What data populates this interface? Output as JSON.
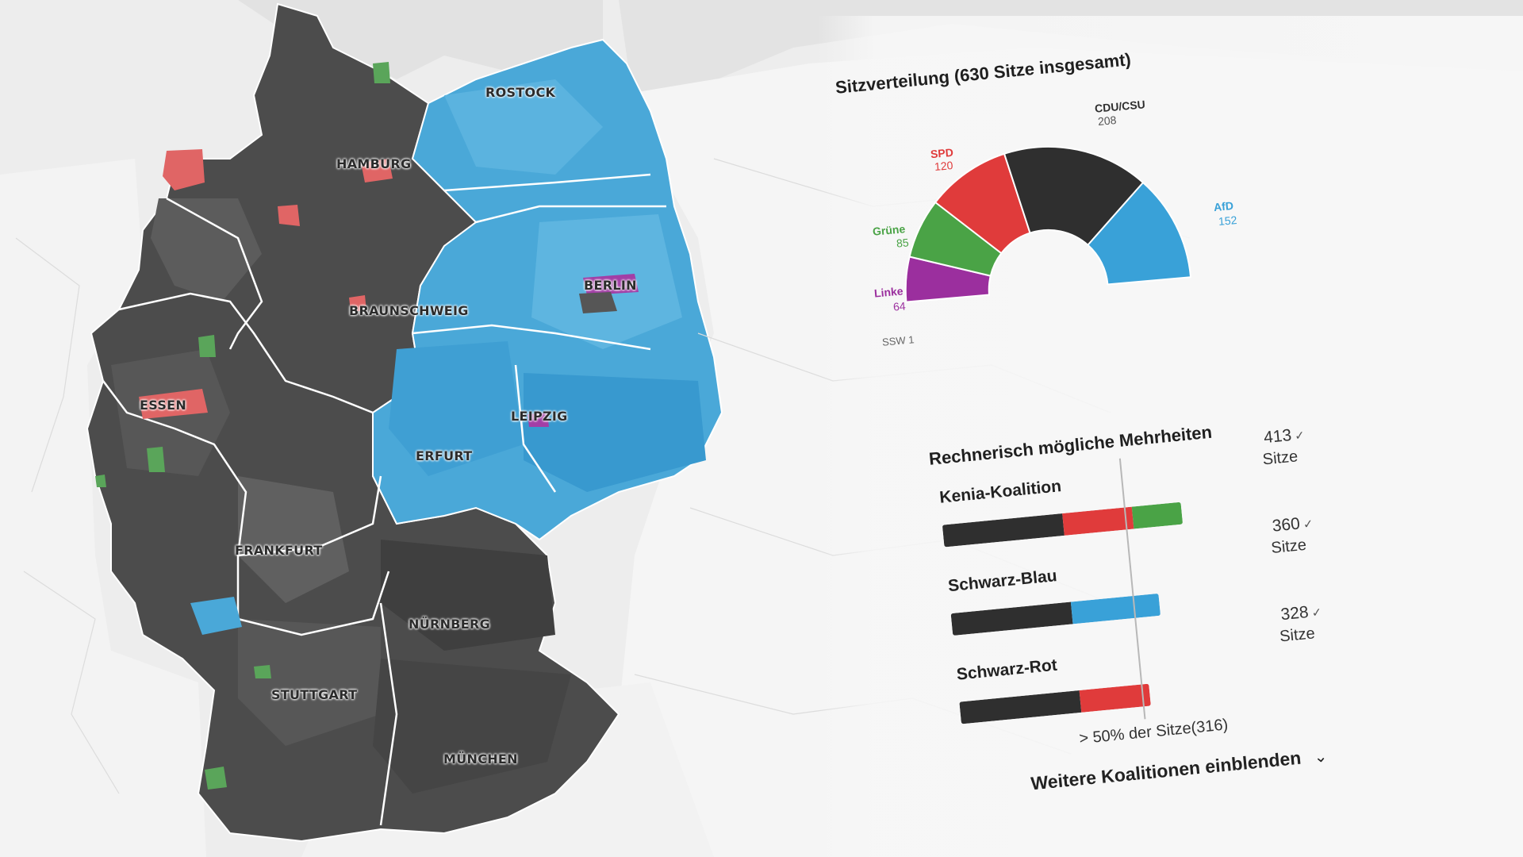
{
  "map": {
    "cities": [
      "ROSTOCK",
      "HAMBURG",
      "BERLIN",
      "BRAUNSCHWEIG",
      "ESSEN",
      "LEIPZIG",
      "ERFURT",
      "FRANKFURT",
      "NÜRNBERG",
      "STUTTGART",
      "MÜNCHEN"
    ],
    "colors": {
      "cdu": "#4a4a4a",
      "afd": "#4aa8d8",
      "spd": "#e06565",
      "gruene": "#5aa55a",
      "linke": "#a23ea6",
      "land": "#f4f4f4",
      "sea": "#e4e4e4"
    }
  },
  "seat_panel": {
    "title": "Sitzverteilung (630 Sitze insgesamt)",
    "total_seats": 630,
    "parties": [
      {
        "name": "Linke",
        "seats": "64",
        "seat_count": 64,
        "color": "#9b2f9e"
      },
      {
        "name": "Grüne",
        "seats": "85",
        "seat_count": 85,
        "color": "#4aa346"
      },
      {
        "name": "SPD",
        "seats": "120",
        "seat_count": 120,
        "color": "#e03b3b"
      },
      {
        "name": "CDU/CSU",
        "seats": "208",
        "seat_count": 208,
        "color": "#2f2f2f"
      },
      {
        "name": "AfD",
        "seats": "152",
        "seat_count": 152,
        "color": "#39a1d8"
      }
    ],
    "ssw_label": "SSW 1"
  },
  "majorities": {
    "title": "Rechnerisch mögliche Mehrheiten",
    "unit": "Sitze",
    "coalitions": [
      {
        "name": "Kenia-Koalition",
        "total": "413",
        "check": "✓",
        "segments": [
          {
            "party": "CDU/CSU",
            "seats": 208,
            "color": "#2f2f2f"
          },
          {
            "party": "SPD",
            "seats": 120,
            "color": "#e03b3b"
          },
          {
            "party": "Grüne",
            "seats": 85,
            "color": "#4aa346"
          }
        ]
      },
      {
        "name": "Schwarz-Blau",
        "total": "360",
        "check": "✓",
        "segments": [
          {
            "party": "CDU/CSU",
            "seats": 208,
            "color": "#2f2f2f"
          },
          {
            "party": "AfD",
            "seats": 152,
            "color": "#39a1d8"
          }
        ]
      },
      {
        "name": "Schwarz-Rot",
        "total": "328",
        "check": "✓",
        "segments": [
          {
            "party": "CDU/CSU",
            "seats": 208,
            "color": "#2f2f2f"
          },
          {
            "party": "SPD",
            "seats": 120,
            "color": "#e03b3b"
          }
        ]
      }
    ],
    "majority_label": "> 50% der Sitze(316)",
    "majority_seats": 316,
    "more_label": "Weitere Koalitionen einblenden",
    "more_icon": "chevron-down-icon"
  }
}
